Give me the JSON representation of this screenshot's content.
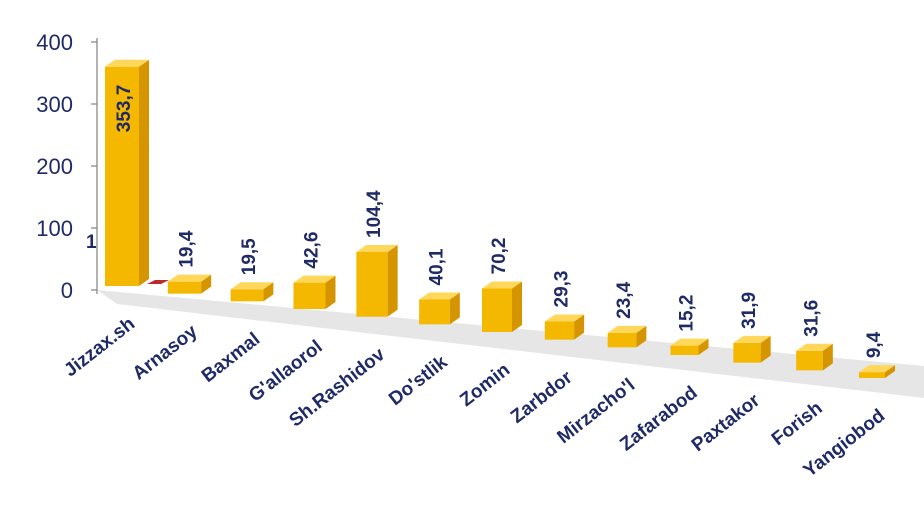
{
  "chart_data": {
    "type": "bar",
    "categories": [
      "Jizzax.sh",
      "Arnasoy",
      "Baxmal",
      "G'allaorol",
      "Sh.Rashidov",
      "Do'stlik",
      "Zomin",
      "Zarbdor",
      "Mirzacho'l",
      "Zafarabod",
      "Paxtakor",
      "Forish",
      "Yangiobod"
    ],
    "values": [
      353.7,
      19.4,
      19.5,
      42.6,
      104.4,
      40.1,
      70.2,
      29.3,
      23.4,
      15.2,
      31.9,
      31.6,
      9.4
    ],
    "value_labels": [
      "353,7",
      "19,4",
      "19,5",
      "42,6",
      "104,4",
      "40,1",
      "70,2",
      "29,3",
      "23,4",
      "15,2",
      "31,9",
      "31,6",
      "9,4"
    ],
    "secondary_series": {
      "values": [
        1.0
      ],
      "labels": [
        "1"
      ],
      "color": "#c0272d"
    },
    "yticks": [
      "0",
      "100",
      "200",
      "300",
      "400"
    ],
    "ylim": [
      0,
      400
    ],
    "title": "",
    "xlabel": "",
    "ylabel": "",
    "grid": false,
    "legend": "none",
    "colors": {
      "bar_front": "#f5b800",
      "bar_side": "#d49500",
      "bar_top": "#ffd75a",
      "floor": "#e6e6e6",
      "text": "#1f2a66"
    }
  }
}
